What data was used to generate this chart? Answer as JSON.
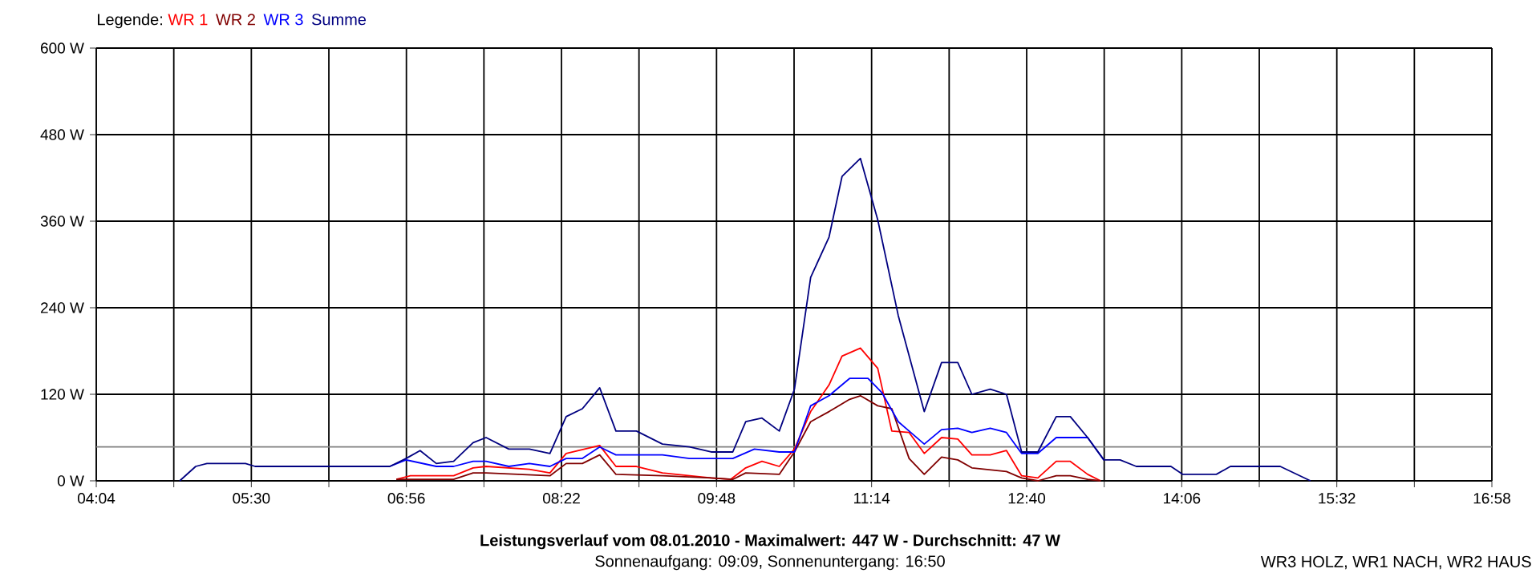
{
  "chart_data": {
    "type": "line",
    "title": "Leistungsverlauf vom 08.01.2010 - Maximalwert: 447 W - Durchschnitt: 47 W",
    "subtitle": "Sonnenaufgang: 09:09, Sonnenuntergang: 16:50",
    "annotations": [
      "WR3 HOLZ, WR1 NACH, WR2 HAUS"
    ],
    "legend_title": "Legende:",
    "legend": "top left",
    "grid": true,
    "marker": "none",
    "line_style": "solid",
    "xlim": [
      4.0667,
      16.9667
    ],
    "xticks": [
      {
        "value": 4.0667,
        "label": "04:04"
      },
      {
        "value": 4.7833,
        "label": null
      },
      {
        "value": 5.5,
        "label": "05:30"
      },
      {
        "value": 6.2167,
        "label": null
      },
      {
        "value": 6.9333,
        "label": "06:56"
      },
      {
        "value": 7.65,
        "label": null
      },
      {
        "value": 8.3667,
        "label": "08:22"
      },
      {
        "value": 9.0833,
        "label": null
      },
      {
        "value": 9.8,
        "label": "09:48"
      },
      {
        "value": 10.5167,
        "label": null
      },
      {
        "value": 11.2333,
        "label": "11:14"
      },
      {
        "value": 11.95,
        "label": null
      },
      {
        "value": 12.6667,
        "label": "12:40"
      },
      {
        "value": 13.3833,
        "label": null
      },
      {
        "value": 14.1,
        "label": "14:06"
      },
      {
        "value": 14.8167,
        "label": null
      },
      {
        "value": 15.5333,
        "label": "15:32"
      },
      {
        "value": 16.25,
        "label": null
      },
      {
        "value": 16.9667,
        "label": "16:58"
      }
    ],
    "ylim": [
      0,
      600
    ],
    "yticks": [
      {
        "value": 0,
        "label": "0 W"
      },
      {
        "value": 120,
        "label": "120 W"
      },
      {
        "value": 240,
        "label": "240 W"
      },
      {
        "value": 360,
        "label": "360 W"
      },
      {
        "value": 480,
        "label": "480 W"
      },
      {
        "value": 600,
        "label": "600 W"
      }
    ],
    "ref_lines": [
      {
        "axis": "y",
        "value": 47,
        "color": "#808080"
      }
    ],
    "series": [
      {
        "name": "WR 1",
        "color": "#ff0000",
        "x": [
          6.84,
          6.97,
          7.21,
          7.37,
          7.55,
          7.67,
          8.07,
          8.26,
          8.41,
          8.72,
          8.87,
          9.06,
          9.3,
          9.75,
          9.93,
          10.07,
          10.22,
          10.38,
          10.52,
          10.67,
          10.84,
          10.96,
          11.13,
          11.29,
          11.42,
          11.58,
          11.72,
          11.88,
          12.03,
          12.16,
          12.33,
          12.48,
          12.62,
          12.77,
          12.94,
          13.07,
          13.23,
          13.35
        ],
        "values": [
          2,
          7,
          7,
          7,
          18,
          20,
          16,
          11,
          38,
          49,
          20,
          20,
          11,
          4,
          2,
          18,
          27,
          20,
          44,
          96,
          133,
          173,
          184,
          156,
          69,
          67,
          38,
          60,
          58,
          36,
          36,
          42,
          7,
          4,
          27,
          27,
          9,
          0
        ]
      },
      {
        "name": "WR 2",
        "color": "#800000",
        "x": [
          6.84,
          6.97,
          7.21,
          7.37,
          7.55,
          7.67,
          8.26,
          8.41,
          8.56,
          8.72,
          8.87,
          9.3,
          9.75,
          9.95,
          10.07,
          10.38,
          10.52,
          10.67,
          10.84,
          11.03,
          11.13,
          11.29,
          11.42,
          11.58,
          11.72,
          11.88,
          12.03,
          12.16,
          12.48,
          12.62,
          12.77,
          12.94,
          13.07,
          13.23,
          13.35
        ],
        "values": [
          2,
          2,
          2,
          2,
          11,
          11,
          7,
          24,
          24,
          36,
          9,
          7,
          4,
          2,
          11,
          9,
          40,
          82,
          96,
          113,
          118,
          104,
          100,
          31,
          9,
          33,
          29,
          18,
          13,
          4,
          0,
          7,
          7,
          2,
          0
        ]
      },
      {
        "name": "WR 3",
        "color": "#0000ff",
        "x": [
          6.78,
          6.93,
          7.21,
          7.37,
          7.55,
          7.67,
          7.88,
          8.07,
          8.26,
          8.41,
          8.56,
          8.72,
          8.87,
          9.3,
          9.55,
          9.95,
          10.15,
          10.38,
          10.52,
          10.67,
          10.84,
          11.03,
          11.2,
          11.33,
          11.48,
          11.58,
          11.72,
          11.88,
          12.03,
          12.16,
          12.33,
          12.48,
          12.62,
          12.77,
          12.94,
          13.23,
          13.38
        ],
        "values": [
          20,
          29,
          20,
          20,
          27,
          27,
          20,
          24,
          20,
          31,
          31,
          47,
          36,
          36,
          31,
          31,
          44,
          40,
          40,
          104,
          118,
          142,
          142,
          122,
          82,
          69,
          51,
          71,
          73,
          67,
          73,
          67,
          38,
          38,
          60,
          60,
          29
        ]
      },
      {
        "name": "Summe",
        "color": "#000080",
        "x": [
          4.838,
          4.986,
          5.09,
          5.446,
          5.535,
          6.78,
          6.93,
          7.06,
          7.21,
          7.37,
          7.55,
          7.67,
          7.88,
          8.07,
          8.26,
          8.41,
          8.56,
          8.72,
          8.87,
          9.06,
          9.3,
          9.55,
          9.75,
          9.95,
          10.07,
          10.22,
          10.38,
          10.52,
          10.67,
          10.84,
          10.96,
          11.13,
          11.29,
          11.48,
          11.72,
          11.88,
          12.03,
          12.16,
          12.33,
          12.48,
          12.62,
          12.77,
          12.94,
          13.07,
          13.23,
          13.38,
          13.53,
          13.68,
          14.0,
          14.11,
          14.42,
          14.55,
          15.01,
          15.29
        ],
        "values": [
          0,
          20,
          24,
          24,
          20,
          20,
          31,
          42,
          24,
          27,
          53,
          60,
          44,
          44,
          38,
          89,
          100,
          129,
          69,
          69,
          51,
          47,
          40,
          40,
          82,
          87,
          69,
          127,
          282,
          338,
          422,
          447,
          362,
          229,
          96,
          164,
          164,
          120,
          127,
          120,
          40,
          40,
          89,
          89,
          60,
          29,
          29,
          20,
          20,
          9,
          9,
          20,
          20,
          0
        ]
      }
    ]
  }
}
